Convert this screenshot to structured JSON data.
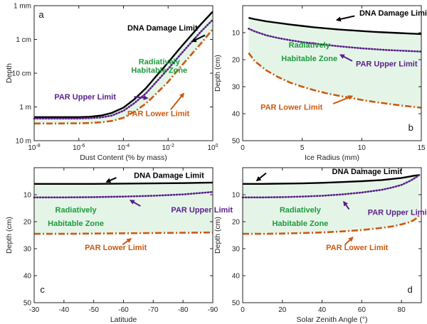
{
  "colors": {
    "dna": "#000000",
    "par_upper": "#5b1f8a",
    "par_lower": "#cc5a10",
    "zone_fill": "#e4f5e8",
    "zone_text": "#1e9a3c"
  },
  "chart_data": [
    {
      "panel": "a",
      "type": "line",
      "xlabel": "Dust Content (% by mass)",
      "ylabel": "Depth",
      "xscale": "log",
      "yscale": "log",
      "xlim": [
        1e-08,
        1
      ],
      "ylim": [
        10,
        0.001
      ],
      "xticks": [
        {
          "v": 1e-08,
          "base": "10",
          "exp": "-8"
        },
        {
          "v": 1e-06,
          "base": "10",
          "exp": "-6"
        },
        {
          "v": 0.0001,
          "base": "10",
          "exp": "-4"
        },
        {
          "v": 0.01,
          "base": "10",
          "exp": "-2"
        },
        {
          "v": 1,
          "base": "10",
          "exp": "0"
        }
      ],
      "yticks": [
        {
          "v": 0.001,
          "label": "1 mm"
        },
        {
          "v": 0.01,
          "label": "1 cm"
        },
        {
          "v": 0.1,
          "label": "10 cm"
        },
        {
          "v": 1,
          "label": "1 m"
        },
        {
          "v": 10,
          "label": "10 m"
        }
      ],
      "series": [
        {
          "name": "DNA Damage Limit",
          "style": "solid",
          "color_key": "dna",
          "x": [
            1e-08,
            1e-07,
            1e-06,
            3e-06,
            1e-05,
            3e-05,
            0.0001,
            0.0003,
            0.001,
            0.003,
            0.01,
            0.03,
            0.1,
            0.3,
            1
          ],
          "y": [
            2,
            2,
            2,
            1.95,
            1.8,
            1.5,
            1.05,
            0.6,
            0.28,
            0.12,
            0.048,
            0.02,
            0.008,
            0.0035,
            0.0015
          ]
        },
        {
          "name": "PAR Upper Limit",
          "style": "dotted",
          "color_key": "par_upper",
          "x": [
            1e-08,
            1e-07,
            1e-06,
            3e-06,
            1e-05,
            3e-05,
            0.0001,
            0.0003,
            0.001,
            0.003,
            0.01,
            0.03,
            0.1,
            0.3,
            1
          ],
          "y": [
            2.2,
            2.2,
            2.2,
            2.15,
            2.05,
            1.8,
            1.3,
            0.78,
            0.4,
            0.18,
            0.075,
            0.032,
            0.013,
            0.0058,
            0.0026
          ]
        },
        {
          "name": "PAR Lower Limit",
          "style": "dashdot",
          "color_key": "par_lower",
          "x": [
            1e-08,
            1e-07,
            1e-06,
            3e-06,
            1e-05,
            3e-05,
            0.0001,
            0.0003,
            0.001,
            0.003,
            0.01,
            0.03,
            0.1,
            0.3,
            1
          ],
          "y": [
            3.1,
            3.1,
            3.05,
            3,
            2.85,
            2.6,
            2.1,
            1.4,
            0.8,
            0.4,
            0.18,
            0.075,
            0.03,
            0.013,
            0.005
          ]
        }
      ],
      "annotations": [
        {
          "text": "a",
          "kind": "panel",
          "x": 1.6e-08,
          "y": 0.0018
        },
        {
          "text": "DNA Damage Limit",
          "kind": "dna",
          "x": 0.00015,
          "y": 0.0045,
          "tx": 0.45,
          "ty": 0.0075,
          "hx": 0.12,
          "hy": 0.0115
        },
        {
          "text": "Radiatively",
          "kind": "zone",
          "x": 0.004,
          "y": 0.045
        },
        {
          "text": "Habitable Zone",
          "kind": "zone",
          "x": 0.004,
          "y": 0.08
        },
        {
          "text": "PAR Upper Limit",
          "kind": "par_upper",
          "x": 8e-08,
          "y": 0.5,
          "tx": 0.0003,
          "ty": 0.5,
          "hx": 0.0012,
          "hy": 0.55
        },
        {
          "text": "PAR Lower Limit",
          "kind": "par_lower",
          "x": 0.00015,
          "y": 1.55,
          "tx": 0.013,
          "ty": 1.2,
          "hx": 0.05,
          "hy": 0.4
        }
      ]
    },
    {
      "panel": "b",
      "type": "line",
      "xlabel": "Ice Radius (mm)",
      "ylabel": "Depth (cm)",
      "xscale": "linear",
      "yscale": "linear",
      "xlim": [
        0,
        15
      ],
      "ylim": [
        50,
        0
      ],
      "xticks": [
        {
          "v": 0,
          "label": "0"
        },
        {
          "v": 5,
          "label": "5"
        },
        {
          "v": 10,
          "label": "10"
        },
        {
          "v": 15,
          "label": "15"
        }
      ],
      "yticks": [
        {
          "v": 10,
          "label": "10"
        },
        {
          "v": 20,
          "label": "20"
        },
        {
          "v": 30,
          "label": "30"
        },
        {
          "v": 40,
          "label": "40"
        },
        {
          "v": 50,
          "label": "50"
        }
      ],
      "series": [
        {
          "name": "DNA Damage Limit",
          "style": "solid",
          "color_key": "dna",
          "x": [
            0.5,
            1,
            2,
            3,
            4,
            5,
            6,
            7,
            8,
            9,
            10,
            11,
            12,
            13,
            14,
            15
          ],
          "y": [
            4.5,
            5,
            5.8,
            6.4,
            7,
            7.5,
            8,
            8.4,
            8.8,
            9.1,
            9.4,
            9.7,
            9.9,
            10.1,
            10.3,
            10.5
          ]
        },
        {
          "name": "PAR Upper Limit",
          "style": "dotted",
          "color_key": "par_upper",
          "x": [
            0.5,
            1,
            2,
            3,
            4,
            5,
            6,
            7,
            8,
            9,
            10,
            11,
            12,
            13,
            14,
            15
          ],
          "y": [
            8.5,
            9.5,
            11,
            12,
            12.8,
            13.5,
            14,
            14.5,
            15,
            15.4,
            15.8,
            16.1,
            16.4,
            16.6,
            16.8,
            17
          ]
        },
        {
          "name": "PAR Lower Limit",
          "style": "dashdot",
          "color_key": "par_lower",
          "x": [
            0.5,
            1,
            2,
            3,
            4,
            5,
            6,
            7,
            8,
            9,
            10,
            11,
            12,
            13,
            14,
            15
          ],
          "y": [
            17.5,
            20.5,
            24,
            26.5,
            28.5,
            30,
            31.3,
            32.4,
            33.3,
            34.1,
            34.9,
            35.6,
            36.2,
            36.8,
            37.3,
            37.8
          ]
        }
      ],
      "annotations": [
        {
          "text": "b",
          "kind": "panel",
          "x": 13.9,
          "y": 45
        },
        {
          "text": "DNA Damage Limit",
          "kind": "dna",
          "x": 9.8,
          "y": 2.6,
          "tx": 9.4,
          "ty": 3.8,
          "hx": 7.9,
          "hy": 5.3
        },
        {
          "text": "Radiatively",
          "kind": "zone",
          "x": 5.6,
          "y": 14.5
        },
        {
          "text": "Habitable Zone",
          "kind": "zone",
          "x": 5.6,
          "y": 19.5
        },
        {
          "text": "PAR Upper Limit",
          "kind": "par_upper",
          "x": 9.5,
          "y": 21.5,
          "tx": 9.2,
          "ty": 20.5,
          "hx": 8.2,
          "hy": 18.2
        },
        {
          "text": "PAR Lower Limit",
          "kind": "par_lower",
          "x": 1.5,
          "y": 37.5,
          "tx": 7.6,
          "ty": 36.3,
          "hx": 9.2,
          "hy": 33.5
        }
      ]
    },
    {
      "panel": "c",
      "type": "line",
      "xlabel": "Latitude",
      "ylabel": "Depth (cm)",
      "xscale": "linear",
      "yscale": "linear",
      "xlim": [
        -30,
        -90
      ],
      "ylim": [
        50,
        0
      ],
      "xticks": [
        {
          "v": -30,
          "label": "-30"
        },
        {
          "v": -40,
          "label": "-40"
        },
        {
          "v": -50,
          "label": "-50"
        },
        {
          "v": -60,
          "label": "-60"
        },
        {
          "v": -70,
          "label": "-70"
        },
        {
          "v": -80,
          "label": "-80"
        },
        {
          "v": -90,
          "label": "-90"
        }
      ],
      "yticks": [
        {
          "v": 10,
          "label": "10"
        },
        {
          "v": 20,
          "label": "20"
        },
        {
          "v": 30,
          "label": "30"
        },
        {
          "v": 40,
          "label": "40"
        },
        {
          "v": 50,
          "label": "50"
        }
      ],
      "series": [
        {
          "name": "DNA Damage Limit",
          "style": "solid",
          "color_key": "dna",
          "x": [
            -30,
            -40,
            -50,
            -60,
            -70,
            -80,
            -90
          ],
          "y": [
            6,
            6,
            6,
            5.9,
            5.8,
            5.7,
            5.5
          ]
        },
        {
          "name": "PAR Upper Limit",
          "style": "dotted",
          "color_key": "par_upper",
          "x": [
            -30,
            -40,
            -50,
            -60,
            -70,
            -80,
            -90
          ],
          "y": [
            11,
            11,
            10.9,
            10.7,
            10.4,
            9.9,
            9
          ]
        },
        {
          "name": "PAR Lower Limit",
          "style": "dashdot",
          "color_key": "par_lower",
          "x": [
            -30,
            -40,
            -50,
            -60,
            -70,
            -80,
            -90
          ],
          "y": [
            24.5,
            24.5,
            24.4,
            24.3,
            24.2,
            24.1,
            24
          ]
        }
      ],
      "annotations": [
        {
          "text": "c",
          "kind": "panel",
          "x": -32,
          "y": 45
        },
        {
          "text": "DNA Damage Limit",
          "kind": "dna",
          "x": -63.5,
          "y": 2.8,
          "tx": -57.6,
          "ty": 3.7,
          "hx": -54.3,
          "hy": 5.3
        },
        {
          "text": "Radiatively",
          "kind": "zone",
          "x": -44,
          "y": 15.5
        },
        {
          "text": "Habitable Zone",
          "kind": "zone",
          "x": -44,
          "y": 20.5
        },
        {
          "text": "PAR Upper Limit",
          "kind": "par_upper",
          "x": -76,
          "y": 15.5,
          "tx": -65.7,
          "ty": 14.2,
          "hx": -62.3,
          "hy": 12.1
        },
        {
          "text": "PAR Lower Limit",
          "kind": "par_lower",
          "x": -47,
          "y": 29.5,
          "tx": -59.7,
          "ty": 28.5,
          "hx": -62.5,
          "hy": 26.3
        }
      ]
    },
    {
      "panel": "d",
      "type": "line",
      "xlabel": "Solar Zenith Angle (°)",
      "ylabel": "Depth (cm)",
      "xscale": "linear",
      "yscale": "linear",
      "xlim": [
        0,
        90
      ],
      "ylim": [
        50,
        0
      ],
      "xticks": [
        {
          "v": 0,
          "label": "0"
        },
        {
          "v": 20,
          "label": "20"
        },
        {
          "v": 40,
          "label": "40"
        },
        {
          "v": 60,
          "label": "60"
        },
        {
          "v": 80,
          "label": "80"
        }
      ],
      "yticks": [
        {
          "v": 10,
          "label": "10"
        },
        {
          "v": 20,
          "label": "20"
        },
        {
          "v": 30,
          "label": "30"
        },
        {
          "v": 40,
          "label": "40"
        },
        {
          "v": 50,
          "label": "50"
        }
      ],
      "series": [
        {
          "name": "DNA Damage Limit",
          "style": "solid",
          "color_key": "dna",
          "x": [
            0,
            10,
            20,
            30,
            40,
            50,
            60,
            70,
            75,
            80,
            84,
            86,
            88,
            89
          ],
          "y": [
            6,
            6,
            5.9,
            5.8,
            5.6,
            5.3,
            5,
            4.6,
            4.2,
            3.8,
            3.3,
            3,
            2.8,
            2.7
          ]
        },
        {
          "name": "PAR Upper Limit",
          "style": "dotted",
          "color_key": "par_upper",
          "x": [
            0,
            10,
            20,
            30,
            40,
            50,
            60,
            70,
            75,
            80,
            84,
            86,
            88,
            89
          ],
          "y": [
            11,
            11,
            10.9,
            10.7,
            10.4,
            9.9,
            9.2,
            8.2,
            7.4,
            6.4,
            5,
            4.2,
            3.2,
            2.7
          ]
        },
        {
          "name": "PAR Lower Limit",
          "style": "dashdot",
          "color_key": "par_lower",
          "x": [
            0,
            10,
            20,
            30,
            40,
            50,
            60,
            70,
            75,
            80,
            84,
            86,
            88,
            89
          ],
          "y": [
            24.5,
            24.5,
            24.4,
            24.2,
            24,
            23.6,
            23.1,
            22.3,
            21.8,
            21,
            20.2,
            19.5,
            18.5,
            17.5
          ]
        }
      ],
      "annotations": [
        {
          "text": "d",
          "kind": "panel",
          "x": 83,
          "y": 45
        },
        {
          "text": "DNA Damage Limit",
          "kind": "dna",
          "x": 45,
          "y": 1.3,
          "tx": 11.8,
          "ty": 2.0,
          "hx": 7.1,
          "hy": 4.8
        },
        {
          "text": "Radiatively",
          "kind": "zone",
          "x": 29,
          "y": 15.5
        },
        {
          "text": "Habitable Zone",
          "kind": "zone",
          "x": 29,
          "y": 20.5
        },
        {
          "text": "PAR Upper Limit",
          "kind": "par_upper",
          "x": 63,
          "y": 16.5,
          "tx": 53.6,
          "ty": 15.4,
          "hx": 50.9,
          "hy": 12.6
        },
        {
          "text": "PAR Lower Limit",
          "kind": "par_lower",
          "x": 42,
          "y": 29.5,
          "tx": 51.5,
          "ty": 28.5,
          "hx": 55.5,
          "hy": 25.8
        }
      ]
    }
  ]
}
